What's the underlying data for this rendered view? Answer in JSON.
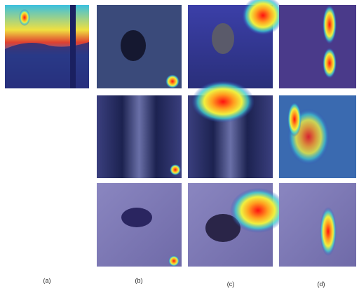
{
  "figure": {
    "panel_labels": [
      "(a)",
      "(b)",
      "(c)",
      "(d)"
    ]
  }
}
